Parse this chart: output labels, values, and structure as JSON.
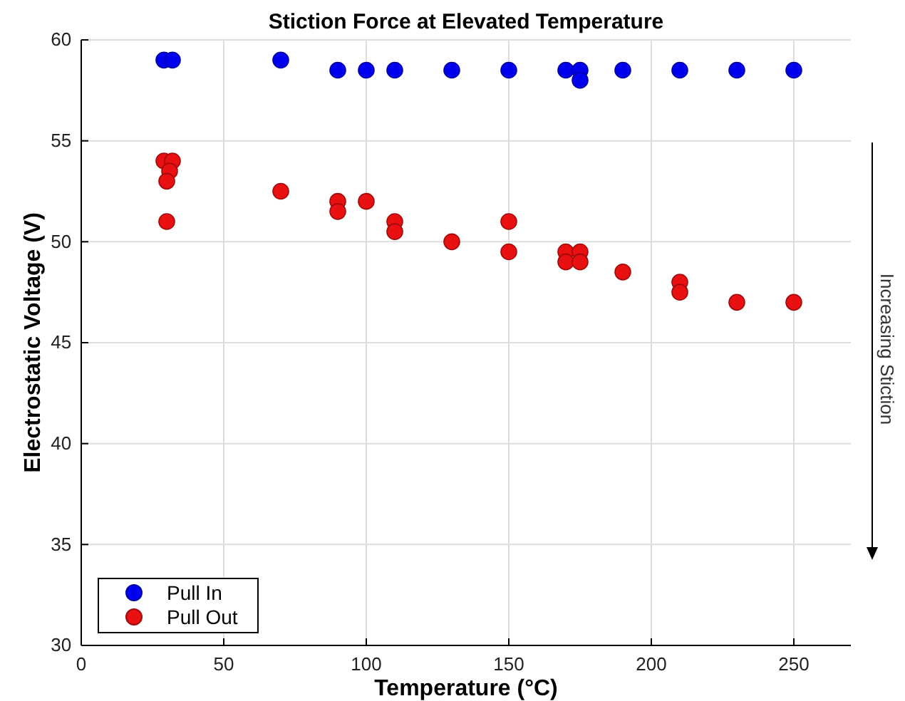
{
  "chart_data": {
    "type": "scatter",
    "title": "Stiction Force at Elevated Temperature",
    "xlabel": "Temperature (°C)",
    "ylabel": "Electrostatic Voltage (V)",
    "xlim": [
      0,
      270
    ],
    "xticks": [
      0,
      50,
      100,
      150,
      200,
      250
    ],
    "ylim": [
      30,
      60
    ],
    "yticks": [
      30,
      35,
      40,
      45,
      50,
      55,
      60
    ],
    "grid": true,
    "legend": "bottom left",
    "marker": "circle",
    "annotations": [
      "Increasing Stiction"
    ],
    "series": [
      {
        "name": "Pull In",
        "color": "#0000ee",
        "x": [
          29,
          32,
          70,
          90,
          100,
          110,
          130,
          150,
          170,
          175,
          175,
          190,
          210,
          230,
          250
        ],
        "values": [
          59,
          59,
          59,
          58.5,
          58.5,
          58.5,
          58.5,
          58.5,
          58.5,
          58.5,
          58,
          58.5,
          58.5,
          58.5,
          58.5
        ]
      },
      {
        "name": "Pull Out",
        "color": "#e81010",
        "x": [
          29,
          32,
          31,
          30,
          30,
          70,
          90,
          90,
          100,
          110,
          110,
          130,
          150,
          150,
          170,
          170,
          175,
          175,
          190,
          210,
          210,
          230,
          250
        ],
        "values": [
          54,
          54,
          53.5,
          53,
          51,
          52.5,
          52,
          51.5,
          52,
          51,
          50.5,
          50,
          51,
          49.5,
          49.5,
          49,
          49.5,
          49,
          48.5,
          48,
          47.5,
          47,
          47
        ]
      }
    ]
  }
}
